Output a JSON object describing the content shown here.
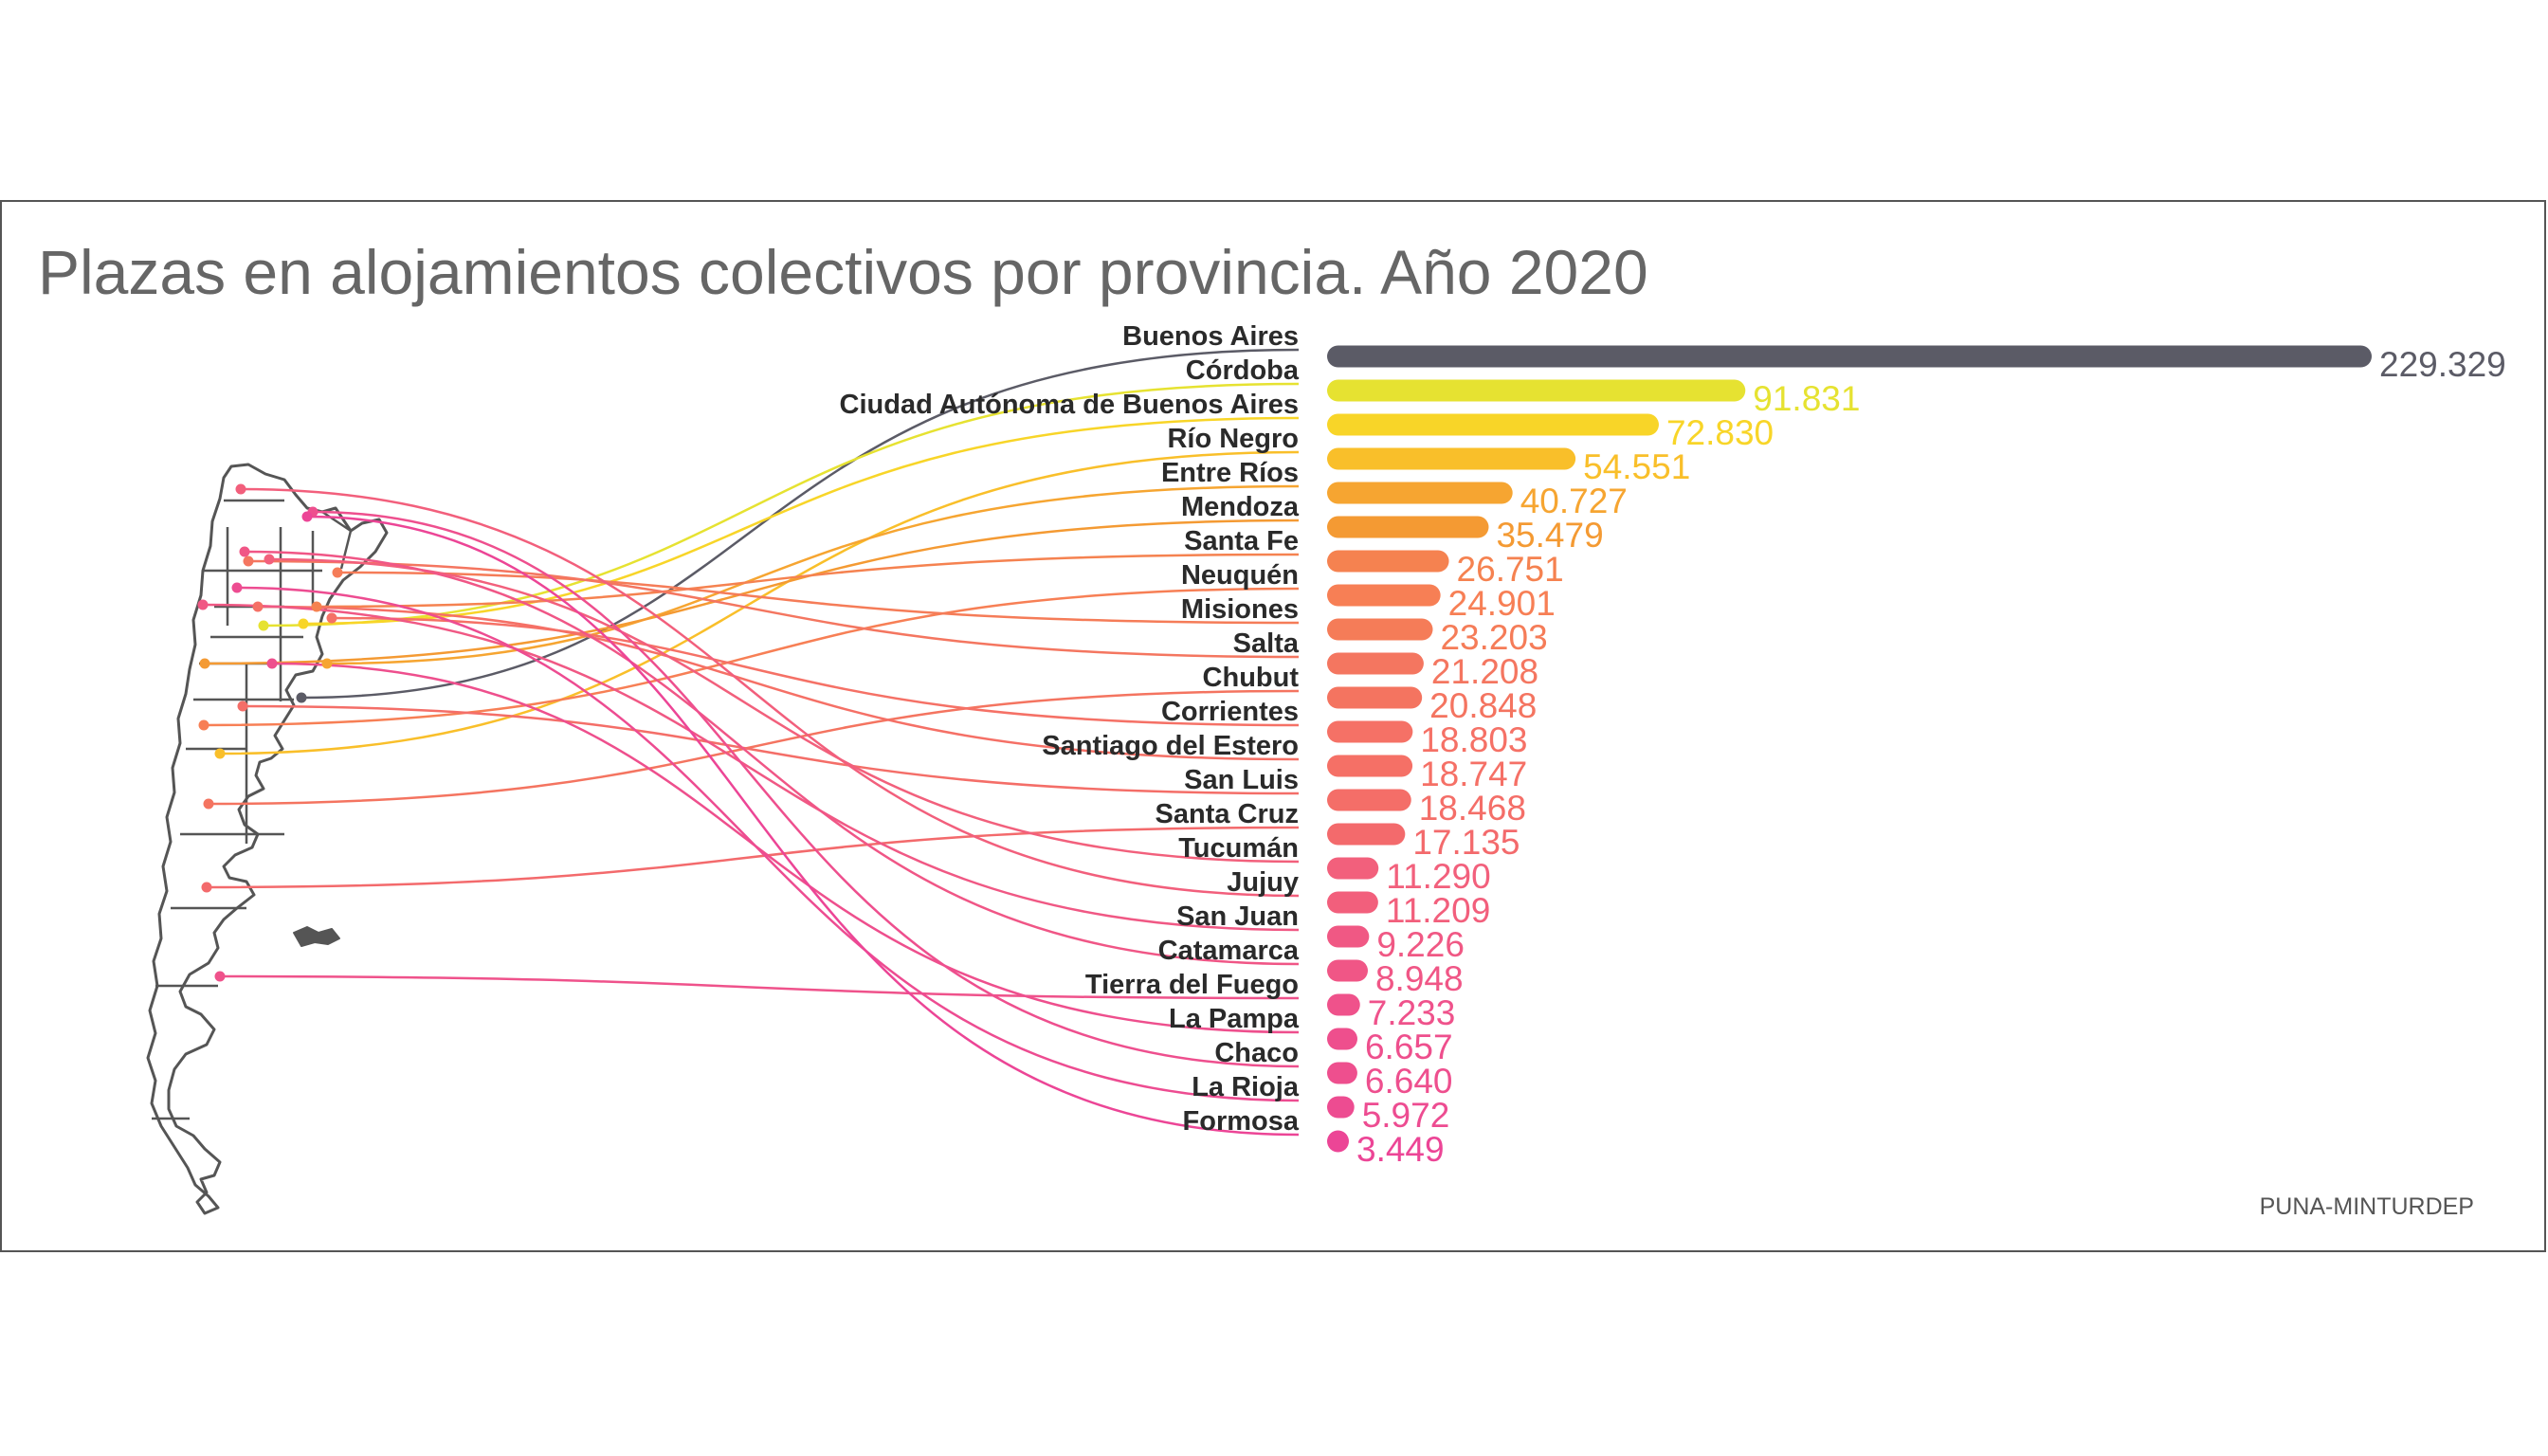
{
  "chart_data": {
    "type": "bar",
    "title": "Plazas en alojamientos colectivos por provincia. Año 2020",
    "source": "PUNA-MINTURDEP",
    "categories": [
      "Buenos Aires",
      "Córdoba",
      "Ciudad Autónoma de Buenos Aires",
      "Río Negro",
      "Entre Ríos",
      "Mendoza",
      "Santa Fe",
      "Neuquén",
      "Misiones",
      "Salta",
      "Chubut",
      "Corrientes",
      "Santiago del Estero",
      "San Luis",
      "Santa Cruz",
      "Tucumán",
      "Jujuy",
      "San Juan",
      "Catamarca",
      "Tierra del Fuego",
      "La Pampa",
      "Chaco",
      "La Rioja",
      "Formosa"
    ],
    "values": [
      229329,
      91831,
      72830,
      54551,
      40727,
      35479,
      26751,
      24901,
      23203,
      21208,
      20848,
      18803,
      18747,
      18468,
      17135,
      11290,
      11209,
      9226,
      8948,
      7233,
      6657,
      6640,
      5972,
      3449
    ],
    "value_labels": [
      "229.329",
      "91.831",
      "72.830",
      "54.551",
      "40.727",
      "35.479",
      "26.751",
      "24.901",
      "23.203",
      "21.208",
      "20.848",
      "18.803",
      "18.747",
      "18.468",
      "17.135",
      "11.290",
      "11.209",
      "9.226",
      "8.948",
      "7.233",
      "6.657",
      "6.640",
      "5.972",
      "3.449"
    ],
    "colors": [
      "#5b5b66",
      "#e6e231",
      "#f8d528",
      "#f9bf2a",
      "#f6a531",
      "#f49a33",
      "#f58250",
      "#f77f55",
      "#f57c58",
      "#f47660",
      "#f47460",
      "#f57166",
      "#f57066",
      "#f46e68",
      "#f36a6c",
      "#f2607c",
      "#f25f7c",
      "#f05884",
      "#f05686",
      "#ef528b",
      "#ee4f8d",
      "#ee4f8e",
      "#ed4c91",
      "#ec4596"
    ],
    "xlim": [
      0,
      229329
    ],
    "grid": false,
    "legend": "none"
  }
}
